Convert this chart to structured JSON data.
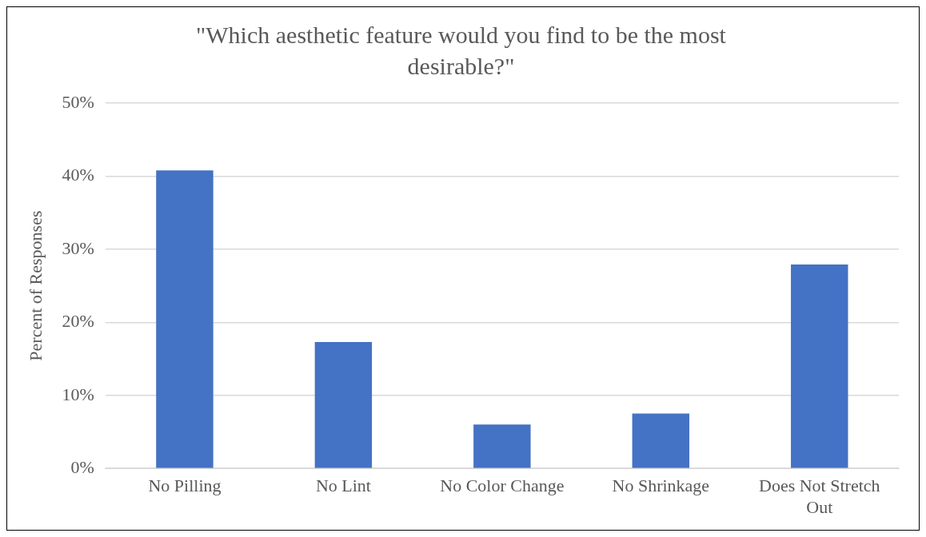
{
  "chart_data": {
    "type": "bar",
    "title": "\"Which aesthetic feature would you find to be the most desirable?\"",
    "ylabel": "Percent of Responses",
    "categories": [
      "No Pilling",
      "No Lint",
      "No Color Change",
      "No Shrinkage",
      "Does Not Stretch Out"
    ],
    "values": [
      40.8,
      17.3,
      6.0,
      7.5,
      27.9
    ],
    "color": "#4472c4",
    "ylim": [
      0,
      50
    ],
    "yticks": [
      {
        "value": 0,
        "label": "0%"
      },
      {
        "value": 10,
        "label": "10%"
      },
      {
        "value": 20,
        "label": "20%"
      },
      {
        "value": 30,
        "label": "30%"
      },
      {
        "value": 40,
        "label": "40%"
      },
      {
        "value": 50,
        "label": "50%"
      }
    ],
    "grid": "y",
    "legend": false
  }
}
